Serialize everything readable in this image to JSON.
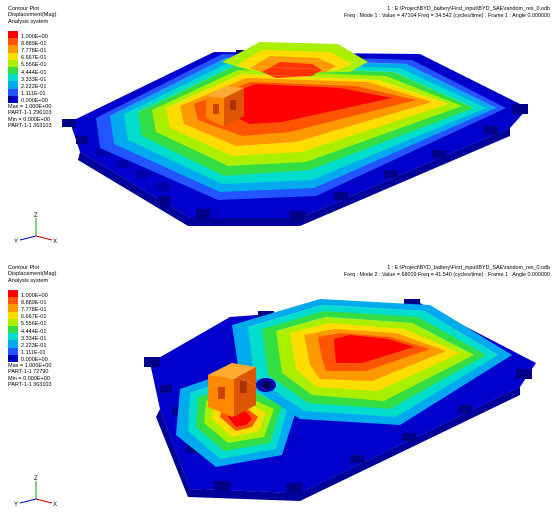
{
  "plots": [
    {
      "header": {
        "title": "Contour Plot",
        "quantity": "Displacement(Mag)",
        "system": "Analysis system"
      },
      "legend": {
        "values": [
          "1.000E+00",
          "8.889E-01",
          "7.778E-01",
          "6.667E-01",
          "5.556E-01",
          "4.444E-01",
          "3.333E-01",
          "2.222E-01",
          "1.111E-01",
          "0.000E+00"
        ],
        "colors": [
          "#ff0000",
          "#ff5500",
          "#ff9900",
          "#ffdd00",
          "#aaee00",
          "#33dd44",
          "#00ddcc",
          "#00aaee",
          "#2255ff",
          "#0000cc"
        ],
        "nodata": "R"
      },
      "stats": {
        "max": "Max = 1.000E+00",
        "max_node": "PART-1-1 296103",
        "min": "Min = 0.000E+00",
        "min_node": "PART-1-1 363103"
      },
      "frame": {
        "file": "1 : E:\\Project\\BYD_battery\\First_input\\BYD_SAE\\random_res_0.odb",
        "line": "Freq : Mode     1 : Value = 47104     Freq = 34.542     (cycles/time) : Frame 1 : Angle 0.000000"
      },
      "triad": {
        "x": "X",
        "y": "Y",
        "z": "Z"
      }
    },
    {
      "header": {
        "title": "Contour Plot",
        "quantity": "Displacement(Mag)",
        "system": "Analysis system"
      },
      "legend": {
        "values": [
          "1.000E+00",
          "8.889E-01",
          "7.778E-01",
          "6.667E-01",
          "5.556E-01",
          "4.444E-01",
          "3.334E-01",
          "2.223E-01",
          "1.111E-01",
          "0.000E+00"
        ],
        "colors": [
          "#ff0000",
          "#ff5500",
          "#ff9900",
          "#ffdd00",
          "#aaee00",
          "#33dd44",
          "#00ddcc",
          "#00aaee",
          "#2255ff",
          "#0000cc"
        ],
        "nodata": "R"
      },
      "stats": {
        "max": "Max = 1.000E+00",
        "max_node": "PART-1-1 72790",
        "min": "Min = 0.000E+00",
        "min_node": "PART-1-1 363103"
      },
      "frame": {
        "file": "1 : E:\\Project\\BYD_battery\\First_input\\BYD_SAE\\random_res_0.odb",
        "line": "Freq : Mode     2 : Value = 68019     Freq = 41.540     (cycles/time) : Frame 1 : Angle 0.000000"
      },
      "triad": {
        "x": "X",
        "y": "Y",
        "z": "Z"
      }
    }
  ]
}
